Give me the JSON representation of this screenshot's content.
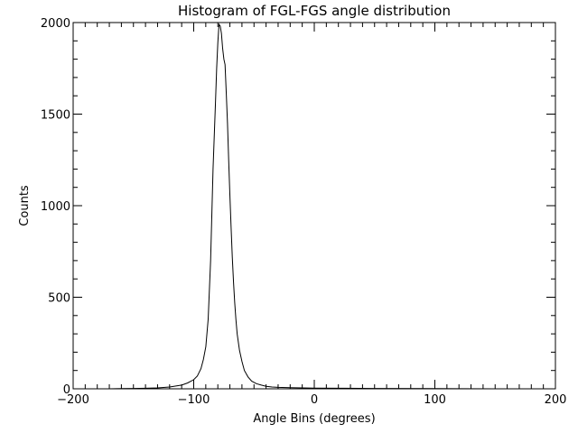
{
  "chart_data": {
    "type": "line",
    "title": "Histogram of FGL-FGS angle distribution",
    "xlabel": "Angle Bins (degrees)",
    "ylabel": "Counts",
    "xlim": [
      -200,
      200
    ],
    "ylim": [
      0,
      2000
    ],
    "xticks": [
      -200,
      -100,
      0,
      100,
      200
    ],
    "yticks": [
      0,
      500,
      1000,
      1500,
      2000
    ],
    "xtick_labels": [
      "−200",
      "−100",
      "0",
      "100",
      "200"
    ],
    "ytick_labels": [
      "0",
      "500",
      "1000",
      "1500",
      "2000"
    ],
    "grid": false,
    "line_color": "#000000",
    "series": [
      {
        "x": [
          -180,
          -170,
          -160,
          -150,
          -140,
          -130,
          -120,
          -110,
          -105,
          -100,
          -97,
          -94,
          -92,
          -90,
          -88,
          -86,
          -84,
          -82,
          -81,
          -80,
          -79,
          -78,
          -77,
          -76,
          -75,
          -74,
          -73,
          -72,
          -71,
          -70,
          -69,
          -68,
          -67,
          -66,
          -65,
          -64,
          -62,
          -60,
          -58,
          -55,
          -52,
          -48,
          -44,
          -40,
          -35,
          -30,
          -20,
          -10,
          0,
          20,
          50,
          100,
          150,
          200
        ],
        "values": [
          0,
          0,
          1,
          2,
          3,
          5,
          10,
          20,
          32,
          50,
          70,
          110,
          160,
          230,
          380,
          700,
          1200,
          1550,
          1750,
          1890,
          1990,
          1980,
          1940,
          1860,
          1800,
          1770,
          1620,
          1450,
          1250,
          1050,
          880,
          720,
          580,
          470,
          380,
          300,
          210,
          150,
          100,
          65,
          42,
          28,
          20,
          14,
          10,
          8,
          6,
          5,
          4,
          3,
          2,
          1,
          0,
          0
        ]
      }
    ]
  }
}
